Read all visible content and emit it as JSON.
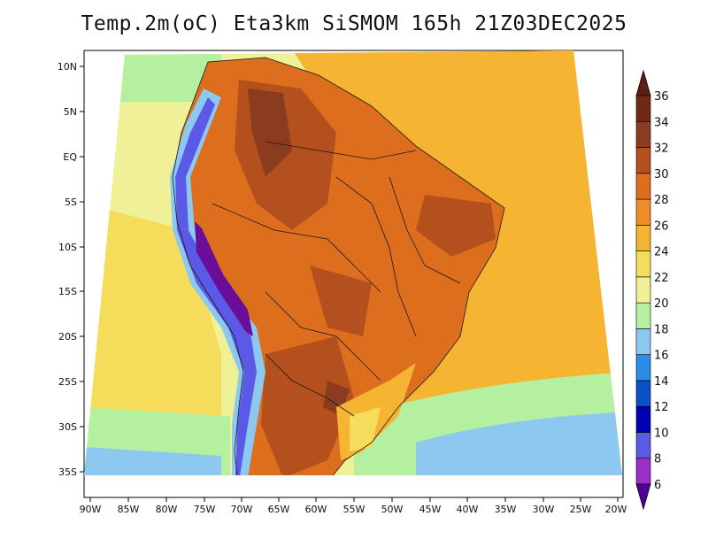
{
  "title": "Temp.2m(oC) Eta3km SiSMOM 165h 21Z03DEC2025",
  "lon_ticks": [
    "90W",
    "85W",
    "80W",
    "75W",
    "70W",
    "65W",
    "60W",
    "55W",
    "50W",
    "45W",
    "40W",
    "35W",
    "30W",
    "25W",
    "20W"
  ],
  "lat_ticks": [
    "10N",
    "5N",
    "EQ",
    "5S",
    "10S",
    "15S",
    "20S",
    "25S",
    "30S",
    "35S"
  ],
  "colorbar": {
    "labels": [
      "6",
      "8",
      "10",
      "12",
      "14",
      "16",
      "18",
      "20",
      "22",
      "24",
      "26",
      "28",
      "30",
      "32",
      "34",
      "36"
    ],
    "colors": [
      "#6a0d9a",
      "#9b30c8",
      "#5a5ae6",
      "#0000b4",
      "#0a50c8",
      "#2a8ce6",
      "#8cc8f0",
      "#b4f0a0",
      "#f0f096",
      "#f5dc5a",
      "#f5b432",
      "#f08c28",
      "#dc6e1e",
      "#b4501e",
      "#8c3c1e",
      "#6e2814"
    ],
    "under_color": "#50009a",
    "over_color": "#5a2010"
  },
  "field_colors": {
    "ocean_cool": "#8cc8f0",
    "ocean_mild": "#b4f0a0",
    "ocean_warm": "#f0f096",
    "ocean_hot": "#f5dc5a",
    "atlantic": "#f5b432",
    "land_hot": "#dc6e1e",
    "land_very_hot": "#b4501e",
    "land_extreme": "#8c3c1e",
    "andes_cold": "#5a5ae6",
    "andes_coldest": "#6a0d9a"
  }
}
